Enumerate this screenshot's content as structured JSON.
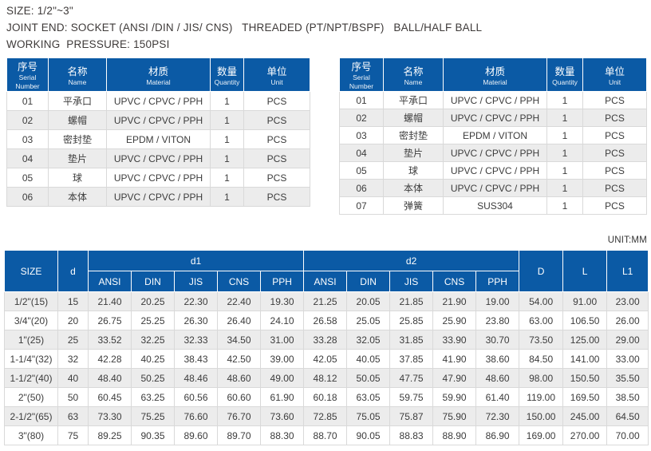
{
  "colors": {
    "blue": "#0b5aa5",
    "row-alt": "#ececec",
    "border": "#d9d9d9",
    "text": "#3c3c3c"
  },
  "info": {
    "size_line": "SIZE: 1/2\"~3\"",
    "joint_line": "JOINT END: SOCKET (ANSI /DIN / JIS/ CNS)   THREADED (PT/NPT/BSPF)   BALL/HALF BALL",
    "pressure_line": "WORKING  PRESSURE: 150PSI"
  },
  "parts_tables": [
    {
      "name": "parts-table-left",
      "columns": [
        {
          "zh": "序号",
          "en": "Serial Number"
        },
        {
          "zh": "名称",
          "en": "Name"
        },
        {
          "zh": "材质",
          "en": "Material"
        },
        {
          "zh": "数量",
          "en": "Quantity"
        },
        {
          "zh": "单位",
          "en": "Unit"
        }
      ],
      "rows": [
        [
          "01",
          "平承口",
          "UPVC / CPVC / PPH",
          "1",
          "PCS"
        ],
        [
          "02",
          "螺帽",
          "UPVC / CPVC / PPH",
          "1",
          "PCS"
        ],
        [
          "03",
          "密封垫",
          "EPDM / VITON",
          "1",
          "PCS"
        ],
        [
          "04",
          "垫片",
          "UPVC / CPVC / PPH",
          "1",
          "PCS"
        ],
        [
          "05",
          "球",
          "UPVC / CPVC / PPH",
          "1",
          "PCS"
        ],
        [
          "06",
          "本体",
          "UPVC / CPVC / PPH",
          "1",
          "PCS"
        ]
      ]
    },
    {
      "name": "parts-table-right",
      "columns": [
        {
          "zh": "序号",
          "en": "Serial Number"
        },
        {
          "zh": "名称",
          "en": "Name"
        },
        {
          "zh": "材质",
          "en": "Material"
        },
        {
          "zh": "数量",
          "en": "Quantity"
        },
        {
          "zh": "单位",
          "en": "Unit"
        }
      ],
      "rows": [
        [
          "01",
          "平承口",
          "UPVC / CPVC / PPH",
          "1",
          "PCS"
        ],
        [
          "02",
          "螺帽",
          "UPVC / CPVC / PPH",
          "1",
          "PCS"
        ],
        [
          "03",
          "密封垫",
          "EPDM / VITON",
          "1",
          "PCS"
        ],
        [
          "04",
          "垫片",
          "UPVC / CPVC / PPH",
          "1",
          "PCS"
        ],
        [
          "05",
          "球",
          "UPVC / CPVC / PPH",
          "1",
          "PCS"
        ],
        [
          "06",
          "本体",
          "UPVC / CPVC / PPH",
          "1",
          "PCS"
        ],
        [
          "07",
          "弹簧",
          "SUS304",
          "1",
          "PCS"
        ]
      ]
    }
  ],
  "unit_note": "UNIT:MM",
  "dimension_table": {
    "headers": {
      "size": "SIZE",
      "d": "d",
      "d1": "d1",
      "d2": "d2",
      "D": "D",
      "L": "L",
      "L1": "L1"
    },
    "standards": [
      "ANSI",
      "DIN",
      "JIS",
      "CNS",
      "PPH"
    ],
    "rows": [
      {
        "size": "1/2\"(15)",
        "d": "15",
        "d1": [
          "21.40",
          "20.25",
          "22.30",
          "22.40",
          "19.30"
        ],
        "d2": [
          "21.25",
          "20.05",
          "21.85",
          "21.90",
          "19.00"
        ],
        "D": "54.00",
        "L": "91.00",
        "L1": "23.00"
      },
      {
        "size": "3/4\"(20)",
        "d": "20",
        "d1": [
          "26.75",
          "25.25",
          "26.30",
          "26.40",
          "24.10"
        ],
        "d2": [
          "26.58",
          "25.05",
          "25.85",
          "25.90",
          "23.80"
        ],
        "D": "63.00",
        "L": "106.50",
        "L1": "26.00"
      },
      {
        "size": "1\"(25)",
        "d": "25",
        "d1": [
          "33.52",
          "32.25",
          "32.33",
          "34.50",
          "31.00"
        ],
        "d2": [
          "33.28",
          "32.05",
          "31.85",
          "33.90",
          "30.70"
        ],
        "D": "73.50",
        "L": "125.00",
        "L1": "29.00"
      },
      {
        "size": "1-1/4\"(32)",
        "d": "32",
        "d1": [
          "42.28",
          "40.25",
          "38.43",
          "42.50",
          "39.00"
        ],
        "d2": [
          "42.05",
          "40.05",
          "37.85",
          "41.90",
          "38.60"
        ],
        "D": "84.50",
        "L": "141.00",
        "L1": "33.00"
      },
      {
        "size": "1-1/2\"(40)",
        "d": "40",
        "d1": [
          "48.40",
          "50.25",
          "48.46",
          "48.60",
          "49.00"
        ],
        "d2": [
          "48.12",
          "50.05",
          "47.75",
          "47.90",
          "48.60"
        ],
        "D": "98.00",
        "L": "150.50",
        "L1": "35.50"
      },
      {
        "size": "2\"(50)",
        "d": "50",
        "d1": [
          "60.45",
          "63.25",
          "60.56",
          "60.60",
          "61.90"
        ],
        "d2": [
          "60.18",
          "63.05",
          "59.75",
          "59.90",
          "61.40"
        ],
        "D": "119.00",
        "L": "169.50",
        "L1": "38.50"
      },
      {
        "size": "2-1/2\"(65)",
        "d": "63",
        "d1": [
          "73.30",
          "75.25",
          "76.60",
          "76.70",
          "73.60"
        ],
        "d2": [
          "72.85",
          "75.05",
          "75.87",
          "75.90",
          "72.30"
        ],
        "D": "150.00",
        "L": "245.00",
        "L1": "64.50"
      },
      {
        "size": "3\"(80)",
        "d": "75",
        "d1": [
          "89.25",
          "90.35",
          "89.60",
          "89.70",
          "88.30"
        ],
        "d2": [
          "88.70",
          "90.05",
          "88.83",
          "88.90",
          "86.90"
        ],
        "D": "169.00",
        "L": "270.00",
        "L1": "70.00"
      }
    ]
  }
}
